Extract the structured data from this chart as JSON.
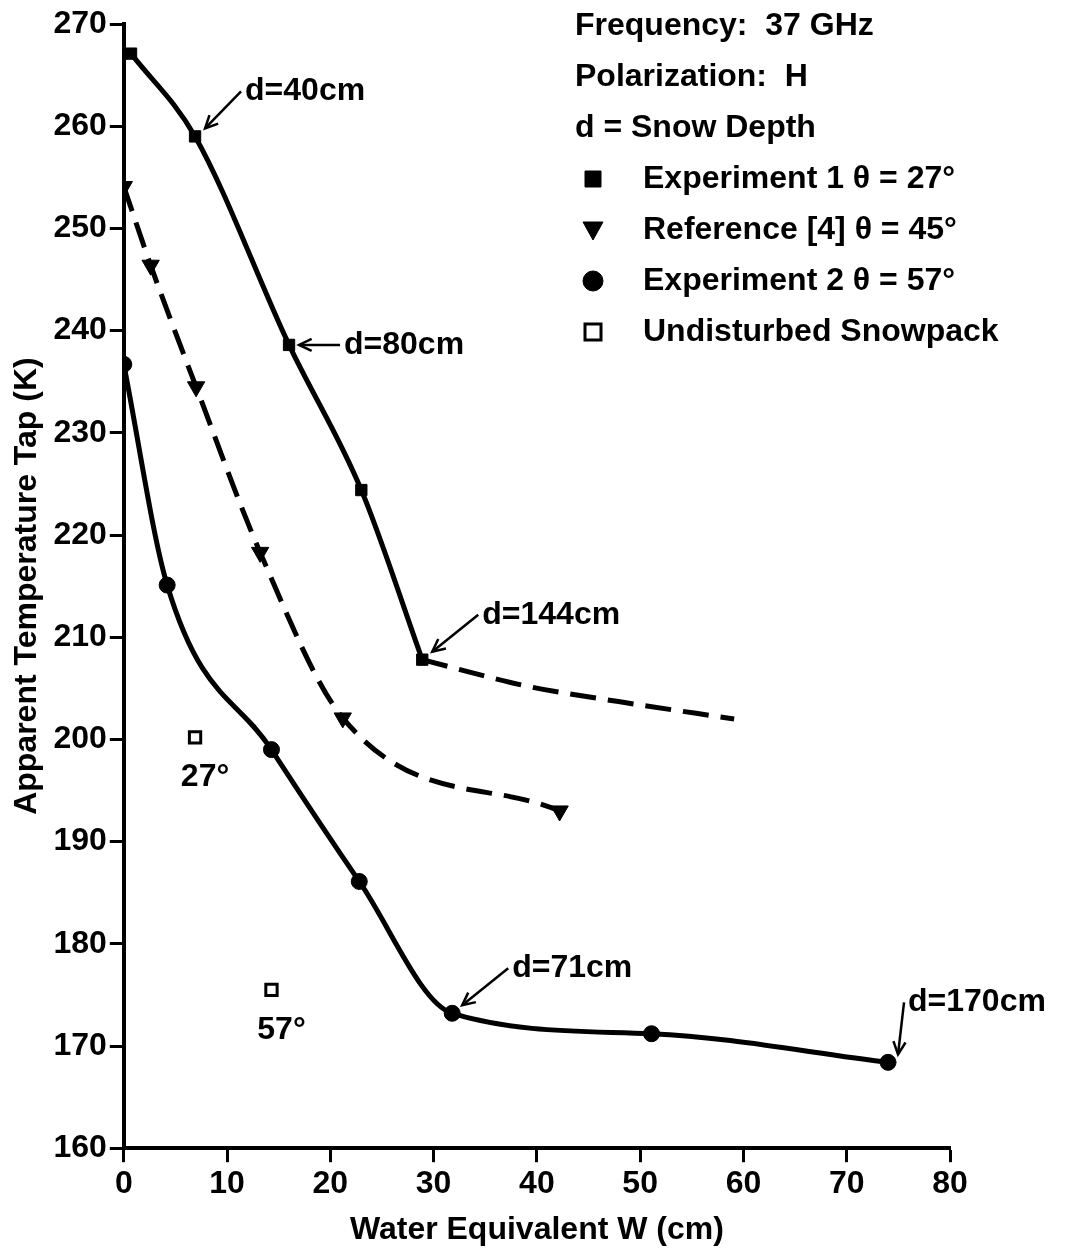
{
  "chart_data": {
    "type": "line",
    "xlabel": "Water Equivalent W (cm)",
    "ylabel": "Apparent Temperature Tap (K)",
    "xlim": [
      0,
      80
    ],
    "xticks": [
      0,
      10,
      20,
      30,
      40,
      50,
      60,
      70,
      80
    ],
    "ylim": [
      160,
      270
    ],
    "yticks": [
      160,
      170,
      180,
      190,
      200,
      210,
      220,
      230,
      240,
      250,
      260,
      270
    ],
    "grid": false,
    "legend": "top right",
    "series": [
      {
        "name": "Experiment 1 θ = 27°",
        "color": "#000000",
        "marker": "square",
        "line_style": "solid",
        "x": [
          0.7,
          6.9,
          16.0,
          23.0,
          28.9
        ],
        "values": [
          267.1,
          259.0,
          238.6,
          224.4,
          207.8
        ]
      },
      {
        "type": "line",
        "color": "#000000",
        "marker": "none",
        "line_style": "dashed",
        "x": [
          28.9,
          39.1,
          47.9,
          59.1
        ],
        "values": [
          207.8,
          205.2,
          203.7,
          202.0
        ]
      },
      {
        "name": "Reference [4] θ = 45°",
        "color": "#000000",
        "marker": "triangle",
        "line_style": "dashed",
        "x": [
          0,
          2.6,
          7.0,
          13.2,
          21.2,
          42.2
        ],
        "values": [
          254.1,
          246.4,
          234.5,
          218.3,
          202.1,
          193.0
        ]
      },
      {
        "name": "Experiment 2 θ = 57°",
        "color": "#000000",
        "marker": "circle",
        "line_style": "solid",
        "x": [
          0,
          4.2,
          14.3,
          22.8,
          31.8,
          51.1,
          74.0
        ],
        "values": [
          236.7,
          215.1,
          199.0,
          186.1,
          173.2,
          171.2,
          168.4
        ]
      },
      {
        "name": "Undisturbed Snowpack",
        "type": "scatter",
        "color": "#000000",
        "marker": "square",
        "x": [
          6.9,
          14.3
        ],
        "values": [
          200.2,
          175.5
        ]
      }
    ],
    "annotations": [
      "Frequency:  37 GHz",
      "Polarization:  H",
      "d = Snow Depth",
      {
        "text": "d=40cm",
        "x": 6.9,
        "y": 259.0
      },
      {
        "text": "d=80cm",
        "x": 16.0,
        "y": 238.6
      },
      {
        "text": "d=144cm",
        "x": 28.9,
        "y": 207.8
      },
      {
        "text": "d=71cm",
        "x": 31.8,
        "y": 173.2
      },
      {
        "text": "d=170cm",
        "x": 74.0,
        "y": 168.4
      },
      {
        "text": "27°",
        "x": 6.9,
        "y": 200.2
      },
      {
        "text": "57°",
        "x": 14.3,
        "y": 175.5
      }
    ]
  }
}
